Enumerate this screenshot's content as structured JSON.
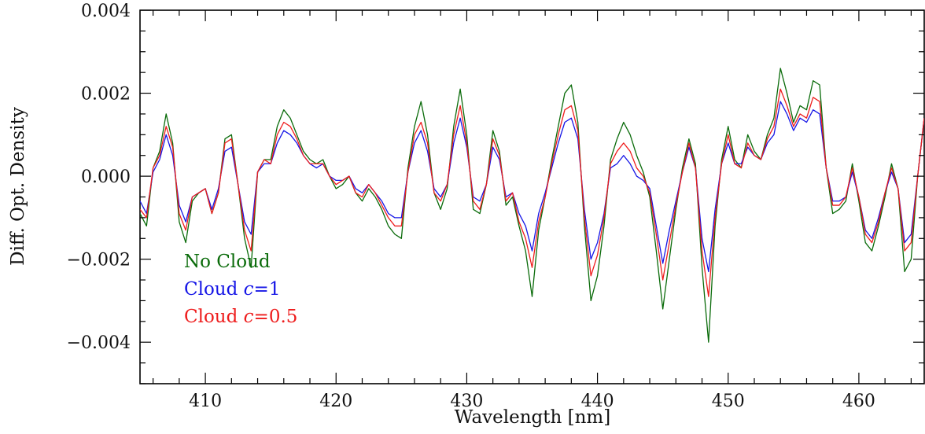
{
  "chart_data": {
    "type": "line",
    "title": "",
    "xlabel": "Wavelength [nm]",
    "ylabel": "Diff. Opt. Density",
    "xlim": [
      405,
      465
    ],
    "ylim": [
      -0.005,
      0.004
    ],
    "xticks": [
      410,
      420,
      430,
      440,
      450,
      460
    ],
    "xtick_labels": [
      "410",
      "420",
      "430",
      "440",
      "450",
      "460"
    ],
    "yticks": [
      -0.004,
      -0.002,
      0.0,
      0.002,
      0.004
    ],
    "ytick_labels": [
      "−0.004",
      "−0.002",
      "0.000",
      "0.002",
      "0.004"
    ],
    "grid": false,
    "legend_position": "bottom-left",
    "x": [
      405.0,
      405.5,
      406.0,
      406.5,
      407.0,
      407.5,
      408.0,
      408.5,
      409.0,
      409.5,
      410.0,
      410.5,
      411.0,
      411.5,
      412.0,
      412.5,
      413.0,
      413.5,
      414.0,
      414.5,
      415.0,
      415.5,
      416.0,
      416.5,
      417.0,
      417.5,
      418.0,
      418.5,
      419.0,
      419.5,
      420.0,
      420.5,
      421.0,
      421.5,
      422.0,
      422.5,
      423.0,
      423.5,
      424.0,
      424.5,
      425.0,
      425.5,
      426.0,
      426.5,
      427.0,
      427.5,
      428.0,
      428.5,
      429.0,
      429.5,
      430.0,
      430.5,
      431.0,
      431.5,
      432.0,
      432.5,
      433.0,
      433.5,
      434.0,
      434.5,
      435.0,
      435.5,
      436.0,
      436.5,
      437.0,
      437.5,
      438.0,
      438.5,
      439.0,
      439.5,
      440.0,
      440.5,
      441.0,
      441.5,
      442.0,
      442.5,
      443.0,
      443.5,
      444.0,
      444.5,
      445.0,
      445.5,
      446.0,
      446.5,
      447.0,
      447.5,
      448.0,
      448.5,
      449.0,
      449.5,
      450.0,
      450.5,
      451.0,
      451.5,
      452.0,
      452.5,
      453.0,
      453.5,
      454.0,
      454.5,
      455.0,
      455.5,
      456.0,
      456.5,
      457.0,
      457.5,
      458.0,
      458.5,
      459.0,
      459.5,
      460.0,
      460.5,
      461.0,
      461.5,
      462.0,
      462.5,
      463.0,
      463.5,
      464.0,
      464.5,
      465.0
    ],
    "series": [
      {
        "name": "No Cloud",
        "color": "#0a6b0a",
        "values": [
          -0.0009,
          -0.0012,
          0.0002,
          0.0006,
          0.0015,
          0.0008,
          -0.0011,
          -0.0016,
          -0.0006,
          -0.0004,
          -0.0003,
          -0.0009,
          -0.0004,
          0.0009,
          0.001,
          -0.0002,
          -0.0015,
          -0.0022,
          0.0001,
          0.0004,
          0.0004,
          0.0012,
          0.0016,
          0.0014,
          0.001,
          0.0006,
          0.0004,
          0.0003,
          0.0004,
          0.0,
          -0.0003,
          -0.0002,
          0.0,
          -0.0004,
          -0.0006,
          -0.0003,
          -0.0005,
          -0.0008,
          -0.0012,
          -0.0014,
          -0.0015,
          0.0002,
          0.0012,
          0.0018,
          0.001,
          -0.0004,
          -0.0008,
          -0.0003,
          0.0012,
          0.0021,
          0.001,
          -0.0008,
          -0.0009,
          -0.0002,
          0.0011,
          0.0006,
          -0.0007,
          -0.0005,
          -0.0012,
          -0.0018,
          -0.0029,
          -0.0013,
          -0.0005,
          0.0004,
          0.0012,
          0.002,
          0.0022,
          0.0013,
          -0.0012,
          -0.003,
          -0.0024,
          -0.0012,
          0.0004,
          0.0009,
          0.0013,
          0.001,
          0.0005,
          0.0001,
          -0.0005,
          -0.0018,
          -0.0032,
          -0.002,
          -0.0008,
          0.0002,
          0.0009,
          0.0003,
          -0.0022,
          -0.004,
          -0.0012,
          0.0004,
          0.0012,
          0.0004,
          0.0002,
          0.001,
          0.0006,
          0.0004,
          0.001,
          0.0014,
          0.0026,
          0.002,
          0.0013,
          0.0017,
          0.0016,
          0.0023,
          0.0022,
          0.0002,
          -0.0009,
          -0.0008,
          -0.0006,
          0.0003,
          -0.0006,
          -0.0016,
          -0.0018,
          -0.0012,
          -0.0005,
          0.0003,
          -0.0003,
          -0.0023,
          -0.002,
          0.0,
          0.0014
        ]
      },
      {
        "name": "Cloud c=1",
        "color": "#1515e6",
        "values": [
          -0.0006,
          -0.0009,
          0.0001,
          0.0004,
          0.001,
          0.0005,
          -0.0007,
          -0.0011,
          -0.0005,
          -0.0004,
          -0.0003,
          -0.0008,
          -0.0003,
          0.0006,
          0.0007,
          -0.0002,
          -0.0011,
          -0.0014,
          0.0001,
          0.0003,
          0.0003,
          0.0008,
          0.0011,
          0.001,
          0.0008,
          0.0005,
          0.0003,
          0.0002,
          0.0003,
          0.0,
          -0.0001,
          -0.0001,
          0.0,
          -0.0003,
          -0.0004,
          -0.0002,
          -0.0004,
          -0.0006,
          -0.0009,
          -0.001,
          -0.001,
          0.0001,
          0.0008,
          0.0011,
          0.0006,
          -0.0003,
          -0.0005,
          -0.0002,
          0.0008,
          0.0014,
          0.0007,
          -0.0005,
          -0.0006,
          -0.0002,
          0.0007,
          0.0004,
          -0.0005,
          -0.0004,
          -0.0009,
          -0.0012,
          -0.0018,
          -0.0009,
          -0.0004,
          0.0002,
          0.0008,
          0.0013,
          0.0014,
          0.0009,
          -0.0008,
          -0.002,
          -0.0016,
          -0.0009,
          0.0002,
          0.0003,
          0.0005,
          0.0003,
          0.0,
          -0.0001,
          -0.0003,
          -0.0012,
          -0.0021,
          -0.0013,
          -0.0006,
          0.0001,
          0.0007,
          0.0002,
          -0.0015,
          -0.0023,
          -0.0008,
          0.0003,
          0.0008,
          0.0003,
          0.0003,
          0.0007,
          0.0005,
          0.0004,
          0.0008,
          0.001,
          0.0018,
          0.0015,
          0.0011,
          0.0014,
          0.0013,
          0.0016,
          0.0015,
          0.0002,
          -0.0006,
          -0.0006,
          -0.0005,
          0.0001,
          -0.0005,
          -0.0013,
          -0.0015,
          -0.001,
          -0.0004,
          0.0001,
          -0.0003,
          -0.0016,
          -0.0014,
          0.0,
          0.0014
        ]
      },
      {
        "name": "Cloud c=0.5",
        "color": "#ee1c1c",
        "values": [
          -0.0008,
          -0.001,
          0.0002,
          0.0005,
          0.0012,
          0.0007,
          -0.0009,
          -0.0013,
          -0.0005,
          -0.0004,
          -0.0003,
          -0.0009,
          -0.0004,
          0.0008,
          0.0009,
          -0.0002,
          -0.0013,
          -0.0018,
          0.0001,
          0.0004,
          0.0003,
          0.001,
          0.0013,
          0.0012,
          0.0009,
          0.0005,
          0.0003,
          0.0003,
          0.0003,
          0.0,
          -0.0002,
          -0.0001,
          0.0,
          -0.0004,
          -0.0005,
          -0.0002,
          -0.0004,
          -0.0007,
          -0.001,
          -0.0012,
          -0.0012,
          0.0001,
          0.001,
          0.0013,
          0.0008,
          -0.0004,
          -0.0006,
          -0.0002,
          0.001,
          0.0017,
          0.0008,
          -0.0006,
          -0.0008,
          -0.0002,
          0.0009,
          0.0005,
          -0.0006,
          -0.0004,
          -0.0011,
          -0.0015,
          -0.0022,
          -0.0011,
          -0.0005,
          0.0003,
          0.001,
          0.0016,
          0.0017,
          0.0011,
          -0.001,
          -0.0024,
          -0.0019,
          -0.001,
          0.0003,
          0.0006,
          0.0008,
          0.0006,
          0.0002,
          0.0,
          -0.0004,
          -0.0014,
          -0.0025,
          -0.0016,
          -0.0007,
          0.0001,
          0.0008,
          0.0002,
          -0.0018,
          -0.0029,
          -0.001,
          0.0003,
          0.001,
          0.0003,
          0.0002,
          0.0008,
          0.0005,
          0.0004,
          0.0009,
          0.0012,
          0.0021,
          0.0017,
          0.0012,
          0.0015,
          0.0014,
          0.0019,
          0.0018,
          0.0002,
          -0.0007,
          -0.0007,
          -0.0005,
          0.0002,
          -0.0005,
          -0.0014,
          -0.0016,
          -0.0011,
          -0.0004,
          0.0002,
          -0.0003,
          -0.0018,
          -0.0016,
          0.0,
          0.0014
        ]
      }
    ],
    "legend_entries": [
      {
        "prefix": "No Cloud",
        "var": "",
        "suffix": "",
        "color": "#0a6b0a"
      },
      {
        "prefix": "Cloud ",
        "var": "c",
        "suffix": "=1",
        "color": "#1515e6"
      },
      {
        "prefix": "Cloud ",
        "var": "c",
        "suffix": "=0.5",
        "color": "#ee1c1c"
      }
    ]
  }
}
